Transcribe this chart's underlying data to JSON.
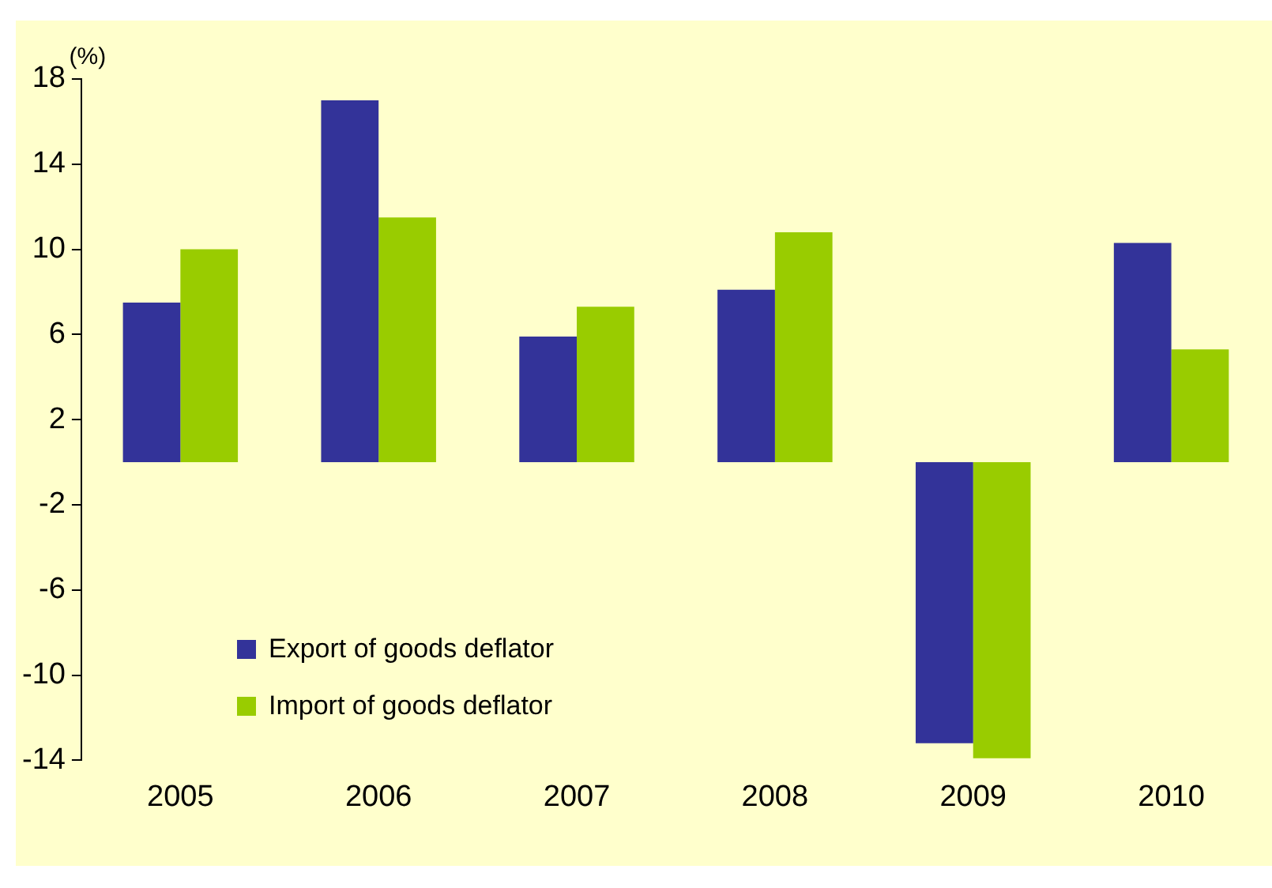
{
  "chart_data": {
    "type": "bar",
    "ylabel": "(%)",
    "categories": [
      "2005",
      "2006",
      "2007",
      "2008",
      "2009",
      "2010"
    ],
    "series": [
      {
        "name": "Export of goods deflator",
        "color": "#333399",
        "values": [
          7.5,
          17.0,
          5.9,
          8.1,
          -13.2,
          10.3
        ]
      },
      {
        "name": "Import of goods deflator",
        "color": "#99cc00",
        "values": [
          10.0,
          11.5,
          7.3,
          10.8,
          -13.9,
          5.3
        ]
      }
    ],
    "ylim": [
      -14,
      18
    ],
    "yticks": [
      -14,
      -10,
      -6,
      -2,
      2,
      6,
      10,
      14,
      18
    ],
    "grid": false,
    "legend": "bottom left"
  }
}
